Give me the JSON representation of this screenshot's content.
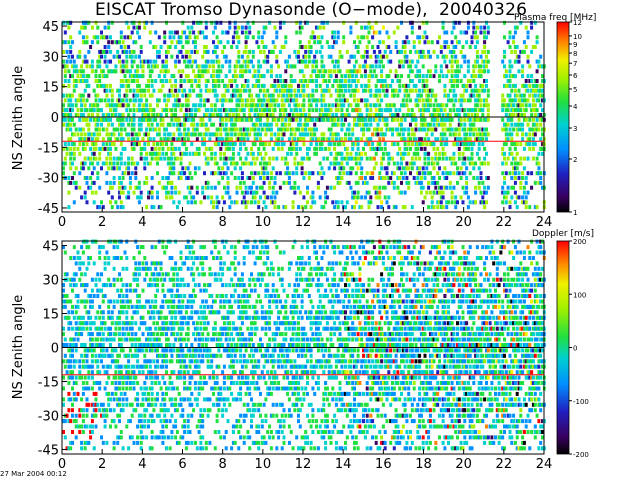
{
  "title": "EISCAT Tromso Dynasonde (O−mode),  20040326",
  "footer": "27 Mar 2004 00:12",
  "chart_data": [
    {
      "type": "heatmap",
      "ylabel": "NS Zenith angle",
      "x_ticks": [
        0,
        2,
        4,
        6,
        8,
        10,
        12,
        14,
        16,
        18,
        20,
        22,
        24
      ],
      "y_ticks": [
        45,
        30,
        15,
        0,
        -15,
        -30,
        -45
      ],
      "xlim": [
        0,
        24
      ],
      "ylim": [
        -47,
        47
      ],
      "reference_lines": [
        0,
        -12
      ],
      "colorbar": {
        "label": "Plasma freq [MHz]",
        "scale": "log",
        "range": [
          1,
          12
        ],
        "ticks": [
          12,
          10,
          9,
          8,
          7,
          6,
          5,
          4,
          3,
          2,
          1
        ]
      },
      "data_gaps_hours": [
        [
          21.2,
          21.8
        ]
      ]
    },
    {
      "type": "heatmap",
      "ylabel": "NS Zenith angle",
      "x_ticks": [
        0,
        2,
        4,
        6,
        8,
        10,
        12,
        14,
        16,
        18,
        20,
        22,
        24
      ],
      "y_ticks": [
        45,
        30,
        15,
        0,
        -15,
        -30,
        -45
      ],
      "xlim": [
        0,
        24
      ],
      "ylim": [
        -47,
        47
      ],
      "reference_lines": [
        0,
        -12
      ],
      "colorbar": {
        "label": "Doppler [m/s]",
        "scale": "linear",
        "range": [
          -200,
          200
        ],
        "ticks": [
          200,
          100,
          0,
          -100,
          -200
        ]
      }
    }
  ]
}
